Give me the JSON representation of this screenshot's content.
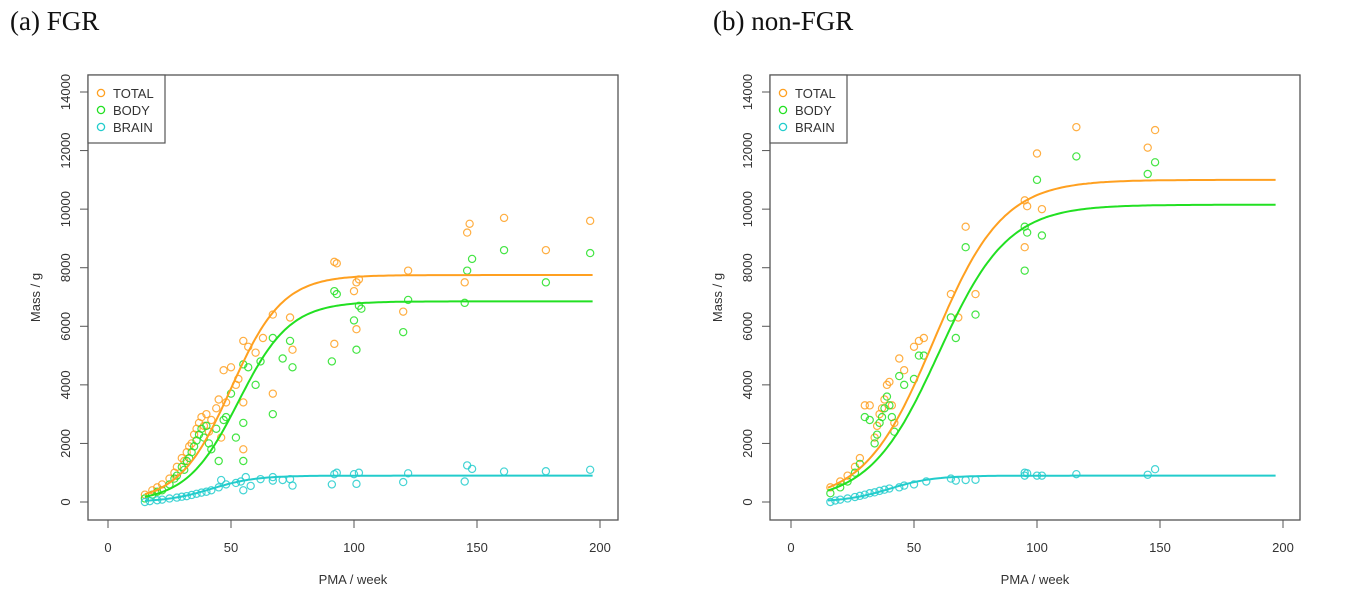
{
  "chart_data": [
    {
      "type": "scatter",
      "title": "(a) FGR",
      "xlabel": "PMA / week",
      "ylabel": "Mass / g",
      "xlim": [
        0,
        200
      ],
      "ylim": [
        0,
        14000
      ],
      "xticks": [
        0,
        50,
        100,
        150,
        200
      ],
      "yticks": [
        0,
        2000,
        4000,
        6000,
        8000,
        10000,
        12000,
        14000
      ],
      "legend_position": "top-left",
      "series": [
        {
          "name": "TOTAL",
          "color": "#FFA020",
          "fit": {
            "asymptote": 7750,
            "midpoint": 50,
            "scale": 10.5
          },
          "points": [
            [
              15,
              250
            ],
            [
              18,
              400
            ],
            [
              20,
              500
            ],
            [
              22,
              600
            ],
            [
              25,
              800
            ],
            [
              27,
              1000
            ],
            [
              28,
              1200
            ],
            [
              30,
              1500
            ],
            [
              31,
              1400
            ],
            [
              32,
              1700
            ],
            [
              33,
              1900
            ],
            [
              34,
              2000
            ],
            [
              35,
              2300
            ],
            [
              36,
              2500
            ],
            [
              37,
              2700
            ],
            [
              38,
              2900
            ],
            [
              39,
              2600
            ],
            [
              40,
              3000
            ],
            [
              41,
              2400
            ],
            [
              42,
              2800
            ],
            [
              44,
              3200
            ],
            [
              45,
              3500
            ],
            [
              46,
              2200
            ],
            [
              47,
              4500
            ],
            [
              48,
              3400
            ],
            [
              50,
              4600
            ],
            [
              52,
              4000
            ],
            [
              53,
              4200
            ],
            [
              55,
              1800
            ],
            [
              55,
              3400
            ],
            [
              55,
              5500
            ],
            [
              57,
              5300
            ],
            [
              60,
              5100
            ],
            [
              63,
              5600
            ],
            [
              67,
              6400
            ],
            [
              67,
              3700
            ],
            [
              74,
              6300
            ],
            [
              75,
              5200
            ],
            [
              92,
              8200
            ],
            [
              93,
              8150
            ],
            [
              92,
              5400
            ],
            [
              100,
              7200
            ],
            [
              101,
              7500
            ],
            [
              102,
              7600
            ],
            [
              101,
              5900
            ],
            [
              120,
              6500
            ],
            [
              122,
              7900
            ],
            [
              145,
              7500
            ],
            [
              146,
              9200
            ],
            [
              147,
              9500
            ],
            [
              161,
              9700
            ],
            [
              178,
              8600
            ],
            [
              196,
              9600
            ]
          ]
        },
        {
          "name": "BODY",
          "color": "#22E022",
          "fit": {
            "asymptote": 6850,
            "midpoint": 53,
            "scale": 10.5
          },
          "points": [
            [
              15,
              120
            ],
            [
              18,
              250
            ],
            [
              20,
              350
            ],
            [
              22,
              400
            ],
            [
              25,
              600
            ],
            [
              27,
              800
            ],
            [
              28,
              900
            ],
            [
              30,
              1200
            ],
            [
              31,
              1100
            ],
            [
              32,
              1400
            ],
            [
              33,
              1500
            ],
            [
              34,
              1700
            ],
            [
              35,
              1900
            ],
            [
              36,
              2100
            ],
            [
              37,
              2300
            ],
            [
              38,
              2500
            ],
            [
              39,
              2200
            ],
            [
              40,
              2600
            ],
            [
              41,
              2000
            ],
            [
              42,
              1800
            ],
            [
              44,
              2500
            ],
            [
              45,
              1400
            ],
            [
              47,
              2800
            ],
            [
              48,
              2900
            ],
            [
              50,
              3700
            ],
            [
              52,
              2200
            ],
            [
              55,
              1400
            ],
            [
              55,
              2700
            ],
            [
              55,
              4700
            ],
            [
              57,
              4600
            ],
            [
              60,
              4000
            ],
            [
              62,
              4800
            ],
            [
              67,
              5600
            ],
            [
              67,
              3000
            ],
            [
              71,
              4900
            ],
            [
              74,
              5500
            ],
            [
              75,
              4600
            ],
            [
              91,
              4800
            ],
            [
              92,
              7200
            ],
            [
              93,
              7100
            ],
            [
              100,
              6200
            ],
            [
              101,
              5200
            ],
            [
              102,
              6700
            ],
            [
              103,
              6600
            ],
            [
              120,
              5800
            ],
            [
              122,
              6900
            ],
            [
              145,
              6800
            ],
            [
              146,
              7900
            ],
            [
              148,
              8300
            ],
            [
              161,
              8600
            ],
            [
              178,
              7500
            ],
            [
              196,
              8500
            ]
          ]
        },
        {
          "name": "BRAIN",
          "color": "#22CCCC",
          "fit": {
            "asymptote": 900,
            "midpoint": 42,
            "scale": 9
          },
          "points": [
            [
              15,
              0
            ],
            [
              17,
              30
            ],
            [
              20,
              60
            ],
            [
              22,
              80
            ],
            [
              25,
              120
            ],
            [
              28,
              150
            ],
            [
              30,
              180
            ],
            [
              32,
              200
            ],
            [
              34,
              240
            ],
            [
              36,
              280
            ],
            [
              38,
              320
            ],
            [
              40,
              350
            ],
            [
              42,
              400
            ],
            [
              45,
              500
            ],
            [
              46,
              750
            ],
            [
              48,
              600
            ],
            [
              52,
              650
            ],
            [
              54,
              700
            ],
            [
              55,
              400
            ],
            [
              56,
              850
            ],
            [
              58,
              550
            ],
            [
              62,
              780
            ],
            [
              67,
              850
            ],
            [
              67,
              730
            ],
            [
              71,
              750
            ],
            [
              74,
              780
            ],
            [
              75,
              560
            ],
            [
              91,
              600
            ],
            [
              92,
              950
            ],
            [
              93,
              1000
            ],
            [
              100,
              950
            ],
            [
              101,
              620
            ],
            [
              102,
              1000
            ],
            [
              120,
              680
            ],
            [
              122,
              980
            ],
            [
              145,
              700
            ],
            [
              146,
              1250
            ],
            [
              148,
              1130
            ],
            [
              161,
              1040
            ],
            [
              178,
              1050
            ],
            [
              196,
              1100
            ]
          ]
        }
      ]
    },
    {
      "type": "scatter",
      "title": "(b) non-FGR",
      "xlabel": "PMA / week",
      "ylabel": "Mass / g",
      "xlim": [
        0,
        200
      ],
      "ylim": [
        0,
        14000
      ],
      "xticks": [
        0,
        50,
        100,
        150,
        200
      ],
      "yticks": [
        0,
        2000,
        4000,
        6000,
        8000,
        10000,
        12000,
        14000
      ],
      "legend_position": "top-left",
      "series": [
        {
          "name": "TOTAL",
          "color": "#FFA020",
          "fit": {
            "asymptote": 11000,
            "midpoint": 58,
            "scale": 14
          },
          "points": [
            [
              16,
              500
            ],
            [
              20,
              700
            ],
            [
              23,
              900
            ],
            [
              26,
              1200
            ],
            [
              28,
              1500
            ],
            [
              30,
              3300
            ],
            [
              32,
              3300
            ],
            [
              34,
              2200
            ],
            [
              35,
              2600
            ],
            [
              36,
              3000
            ],
            [
              37,
              3200
            ],
            [
              38,
              3500
            ],
            [
              39,
              4000
            ],
            [
              40,
              4100
            ],
            [
              41,
              3300
            ],
            [
              42,
              2700
            ],
            [
              44,
              4900
            ],
            [
              46,
              4500
            ],
            [
              50,
              5300
            ],
            [
              52,
              5500
            ],
            [
              54,
              5600
            ],
            [
              65,
              7100
            ],
            [
              68,
              6300
            ],
            [
              71,
              9400
            ],
            [
              75,
              7100
            ],
            [
              95,
              10300
            ],
            [
              95,
              8700
            ],
            [
              96,
              10100
            ],
            [
              100,
              11900
            ],
            [
              102,
              10000
            ],
            [
              116,
              12800
            ],
            [
              145,
              12100
            ],
            [
              148,
              12700
            ]
          ]
        },
        {
          "name": "BODY",
          "color": "#22E022",
          "fit": {
            "asymptote": 10150,
            "midpoint": 60,
            "scale": 14
          },
          "points": [
            [
              16,
              300
            ],
            [
              20,
              500
            ],
            [
              23,
              700
            ],
            [
              26,
              1000
            ],
            [
              28,
              1300
            ],
            [
              30,
              2900
            ],
            [
              32,
              2800
            ],
            [
              34,
              2000
            ],
            [
              35,
              2300
            ],
            [
              36,
              2700
            ],
            [
              37,
              2900
            ],
            [
              38,
              3200
            ],
            [
              39,
              3600
            ],
            [
              40,
              3300
            ],
            [
              41,
              2900
            ],
            [
              42,
              2400
            ],
            [
              44,
              4300
            ],
            [
              46,
              4000
            ],
            [
              50,
              4200
            ],
            [
              52,
              5000
            ],
            [
              54,
              5000
            ],
            [
              65,
              6300
            ],
            [
              67,
              5600
            ],
            [
              71,
              8700
            ],
            [
              75,
              6400
            ],
            [
              95,
              9400
            ],
            [
              95,
              7900
            ],
            [
              96,
              9200
            ],
            [
              100,
              11000
            ],
            [
              102,
              9100
            ],
            [
              116,
              11800
            ],
            [
              145,
              11200
            ],
            [
              148,
              11600
            ]
          ]
        },
        {
          "name": "BRAIN",
          "color": "#22CCCC",
          "fit": {
            "asymptote": 900,
            "midpoint": 40,
            "scale": 9
          },
          "points": [
            [
              16,
              0
            ],
            [
              18,
              50
            ],
            [
              20,
              80
            ],
            [
              23,
              120
            ],
            [
              26,
              170
            ],
            [
              28,
              210
            ],
            [
              30,
              250
            ],
            [
              32,
              300
            ],
            [
              34,
              330
            ],
            [
              36,
              380
            ],
            [
              38,
              420
            ],
            [
              40,
              460
            ],
            [
              44,
              500
            ],
            [
              46,
              560
            ],
            [
              50,
              600
            ],
            [
              55,
              700
            ],
            [
              65,
              800
            ],
            [
              67,
              730
            ],
            [
              71,
              750
            ],
            [
              75,
              760
            ],
            [
              95,
              900
            ],
            [
              95,
              1000
            ],
            [
              96,
              980
            ],
            [
              100,
              900
            ],
            [
              102,
              900
            ],
            [
              116,
              950
            ],
            [
              145,
              930
            ],
            [
              148,
              1120
            ]
          ]
        }
      ]
    }
  ]
}
